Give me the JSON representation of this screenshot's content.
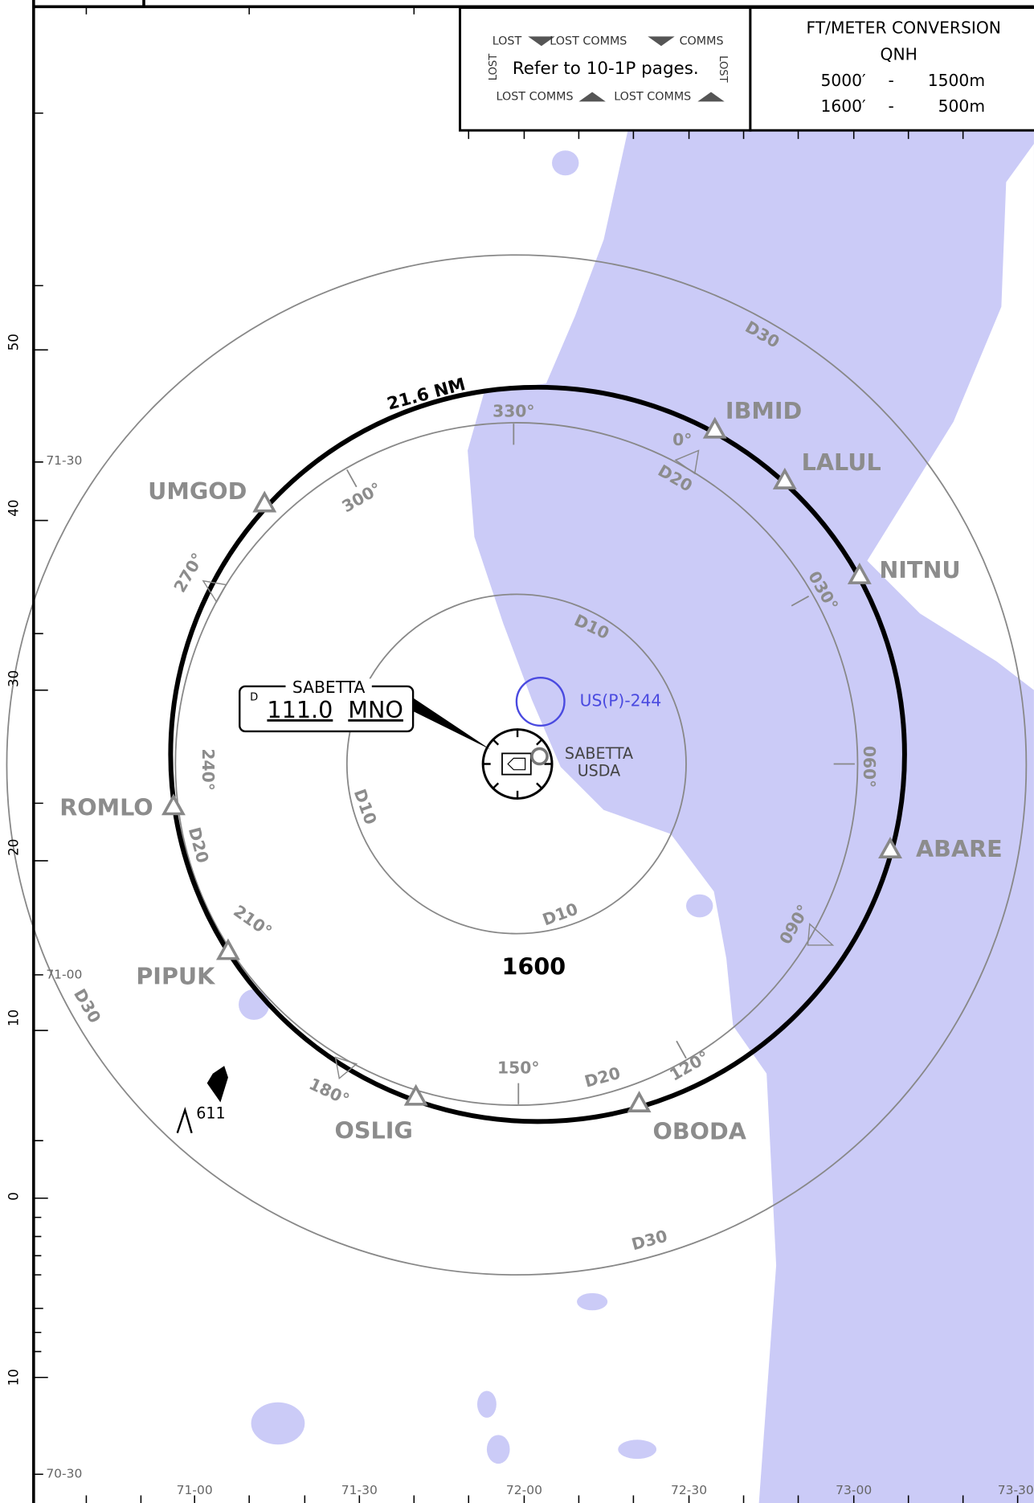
{
  "comms_legend": {
    "top": [
      "LOST",
      "LOST COMMS",
      "COMMS"
    ],
    "middle": "Refer to 10-1P pages.",
    "side": [
      "LOST",
      "LOST"
    ],
    "bottom": [
      "LOST COMMS",
      "LOST COMMS"
    ]
  },
  "conversion": {
    "title": "FT/METER CONVERSION",
    "subtitle": "QNH",
    "rows": [
      [
        "5000′",
        "-",
        "1500m"
      ],
      [
        "1600′",
        "-",
        "500m"
      ]
    ]
  },
  "navaid": {
    "type": "D",
    "name": "SABETTA",
    "frequency": "111.0",
    "ident": "MNO"
  },
  "airport": {
    "name": "SABETTA",
    "icao": "USDA"
  },
  "restricted_area": "US(P)-244",
  "msa": "1600",
  "arc_label": "21.6 NM",
  "obstacle": "611",
  "fixes": [
    "IBMID",
    "LALUL",
    "NITNU",
    "ABARE",
    "OBODA",
    "OSLIG",
    "PIPUK",
    "ROMLO",
    "UMGOD"
  ],
  "radials": [
    "330°",
    "300°",
    "270°",
    "240°",
    "210°",
    "180°",
    "150°",
    "120°",
    "090°",
    "060°",
    "030°",
    "0°"
  ],
  "dme_labels": [
    "D30",
    "D30",
    "D30",
    "D20",
    "D20",
    "D20",
    "D10",
    "D10",
    "D10"
  ],
  "latitude_scale": [
    "50",
    "40",
    "30",
    "20",
    "10",
    "0",
    "10"
  ],
  "grid_labels_left": [
    "71-30",
    "71-00",
    "70-30"
  ],
  "grid_labels_bottom": [
    "71-00",
    "71-30",
    "72-00",
    "72-30",
    "73-00",
    "73-30"
  ]
}
